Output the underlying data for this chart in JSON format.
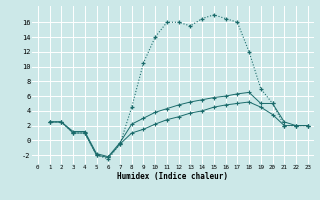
{
  "xlabel": "Humidex (Indice chaleur)",
  "background_color": "#cce8e8",
  "grid_color": "#b0d4d4",
  "line_color": "#1a6b6b",
  "xlim": [
    -0.5,
    23.5
  ],
  "ylim": [
    -3.2,
    18.2
  ],
  "xticks": [
    0,
    1,
    2,
    3,
    4,
    5,
    6,
    7,
    8,
    9,
    10,
    11,
    12,
    13,
    14,
    15,
    16,
    17,
    18,
    19,
    20,
    21,
    22,
    23
  ],
  "yticks": [
    -2,
    0,
    2,
    4,
    6,
    8,
    10,
    12,
    14,
    16
  ],
  "line1_x": [
    1,
    2,
    3,
    4,
    5,
    6,
    7,
    8,
    9,
    10,
    11,
    12,
    13,
    14,
    15,
    16,
    17,
    18,
    19,
    20,
    21,
    22,
    23
  ],
  "line1_y": [
    2.5,
    2.5,
    1.0,
    1.0,
    -2.0,
    -2.5,
    -0.5,
    4.5,
    10.5,
    14.0,
    16.0,
    16.0,
    15.5,
    16.5,
    17.0,
    16.5,
    16.0,
    12.0,
    7.0,
    5.0,
    2.0,
    2.0,
    2.0
  ],
  "line2_x": [
    1,
    2,
    3,
    4,
    5,
    6,
    7,
    8,
    9,
    10,
    11,
    12,
    13,
    14,
    15,
    16,
    17,
    18,
    19,
    20,
    21,
    22,
    23
  ],
  "line2_y": [
    2.5,
    2.5,
    1.2,
    1.2,
    -1.8,
    -2.2,
    -0.3,
    2.2,
    3.0,
    3.8,
    4.3,
    4.8,
    5.2,
    5.5,
    5.8,
    6.0,
    6.3,
    6.5,
    5.0,
    5.0,
    2.5,
    2.0,
    2.0
  ],
  "line3_x": [
    1,
    2,
    3,
    4,
    5,
    6,
    7,
    8,
    9,
    10,
    11,
    12,
    13,
    14,
    15,
    16,
    17,
    18,
    19,
    20,
    21,
    22,
    23
  ],
  "line3_y": [
    2.5,
    2.5,
    1.0,
    1.0,
    -2.0,
    -2.3,
    -0.5,
    1.0,
    1.5,
    2.2,
    2.8,
    3.2,
    3.7,
    4.0,
    4.5,
    4.8,
    5.0,
    5.2,
    4.5,
    3.5,
    2.0,
    2.0,
    2.0
  ]
}
